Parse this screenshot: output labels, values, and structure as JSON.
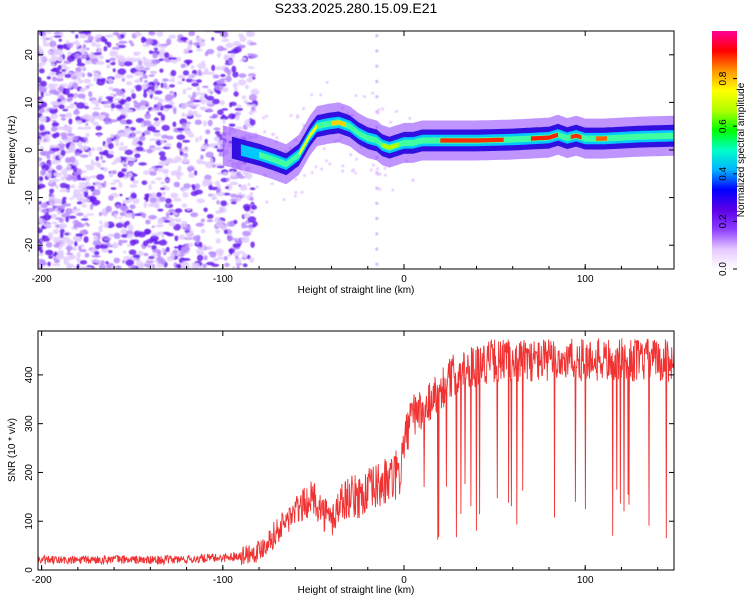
{
  "title": "S233.2025.280.15.09.E21",
  "colors": {
    "snr_line": "#f03232",
    "axis": "#000000",
    "colormap": [
      "#ffffff",
      "#e6c8ff",
      "#8c3cff",
      "#5a00e6",
      "#0000ff",
      "#00b4ff",
      "#00ffc8",
      "#00ff00",
      "#b4ff00",
      "#ffff00",
      "#ff9600",
      "#ff0000",
      "#ff0096"
    ]
  },
  "chart_data": [
    {
      "type": "heatmap",
      "title": "",
      "xlabel": "Height of straight line (km)",
      "ylabel": "Frequency (Hz)",
      "xlim": [
        -202,
        149
      ],
      "ylim": [
        -25,
        25
      ],
      "xticks": [
        -200,
        -100,
        0,
        100
      ],
      "xtick_labels": [
        "-200",
        "-100",
        "0",
        "100"
      ],
      "yticks": [
        -20,
        -10,
        0,
        10,
        20
      ],
      "ytick_labels": [
        "-20",
        "-10",
        "0",
        "10",
        "20"
      ],
      "colorbar": {
        "label": "Normalized spectral amplitude",
        "range": [
          0,
          1
        ],
        "ticks": [
          0.0,
          0.2,
          0.4,
          0.6,
          0.8
        ],
        "tick_labels": [
          "0.0",
          "0.2",
          "0.4",
          "0.6",
          "0.8"
        ]
      },
      "ridge": {
        "description": "dominant frequency ridge",
        "x": [
          -100,
          -90,
          -80,
          -72,
          -65,
          -58,
          -52,
          -48,
          -42,
          -36,
          -30,
          -25,
          -20,
          -15,
          -12,
          -8,
          -4,
          0,
          5,
          10,
          20,
          40,
          60,
          80,
          85,
          90,
          95,
          100,
          110,
          130,
          149
        ],
        "y": [
          1,
          0,
          -1,
          -2,
          -3,
          -1,
          3,
          5,
          5.5,
          5.8,
          5,
          3.5,
          2.5,
          2,
          1,
          0.5,
          1,
          1.5,
          1.5,
          2,
          2,
          2,
          2.2,
          2.6,
          3.2,
          2.5,
          3,
          2.4,
          2.4,
          2.8,
          3
        ]
      }
    },
    {
      "type": "line",
      "title": "",
      "xlabel": "Height of straight line (km)",
      "ylabel": "SNR (10 * v/v)",
      "xlim": [
        -202,
        149
      ],
      "ylim": [
        0,
        490
      ],
      "xticks": [
        -200,
        -100,
        0,
        100
      ],
      "xtick_labels": [
        "-200",
        "-100",
        "0",
        "100"
      ],
      "yticks": [
        0,
        100,
        200,
        300,
        400
      ],
      "ytick_labels": [
        "0",
        "100",
        "200",
        "300",
        "400"
      ],
      "series": [
        {
          "name": "SNR",
          "x": [
            -202,
            -180,
            -160,
            -140,
            -120,
            -100,
            -90,
            -80,
            -75,
            -70,
            -65,
            -60,
            -55,
            -50,
            -45,
            -40,
            -35,
            -30,
            -25,
            -20,
            -15,
            -10,
            -5,
            -2,
            0,
            3,
            6,
            10,
            15,
            20,
            25,
            30,
            40,
            50,
            60,
            70,
            80,
            90,
            100,
            110,
            120,
            130,
            140,
            149
          ],
          "y": [
            20,
            20,
            22,
            20,
            22,
            25,
            30,
            40,
            60,
            80,
            100,
            120,
            135,
            150,
            120,
            100,
            140,
            150,
            150,
            160,
            170,
            180,
            190,
            200,
            260,
            300,
            320,
            330,
            350,
            370,
            390,
            410,
            420,
            430,
            430,
            430,
            430,
            430,
            430,
            430,
            430,
            430,
            430,
            430
          ]
        }
      ]
    }
  ]
}
